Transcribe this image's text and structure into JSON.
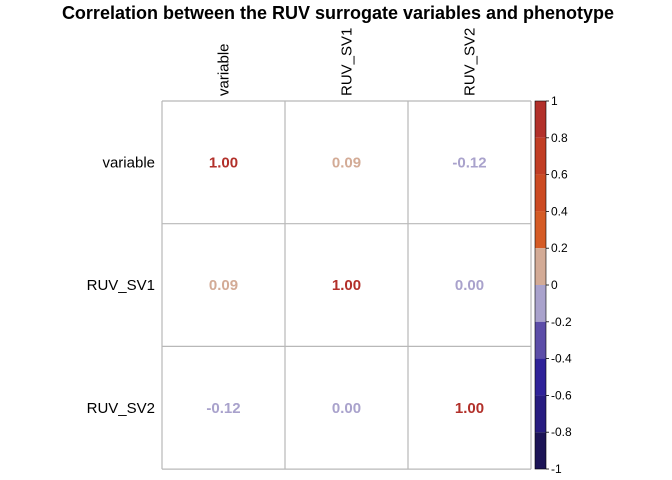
{
  "chart_data": {
    "type": "heatmap",
    "title": "Correlation between the RUV surrogate variables and phenotype",
    "row_labels": [
      "variable",
      "RUV_SV1",
      "RUV_SV2"
    ],
    "col_labels": [
      "variable",
      "RUV_SV1",
      "RUV_SV2"
    ],
    "values": [
      [
        1.0,
        0.09,
        -0.12
      ],
      [
        0.09,
        1.0,
        0.0
      ],
      [
        -0.12,
        0.0,
        1.0
      ]
    ],
    "value_labels": [
      [
        "1.00",
        "0.09",
        "-0.12"
      ],
      [
        "0.09",
        "1.00",
        "0.00"
      ],
      [
        "-0.12",
        "0.00",
        "1.00"
      ]
    ],
    "colorbar": {
      "range": [
        -1,
        1
      ],
      "tick_labels": [
        "1",
        "0.8",
        "0.6",
        "0.4",
        "0.2",
        "0",
        "-0.2",
        "-0.4",
        "-0.6",
        "-0.8",
        "-1"
      ],
      "tick_values": [
        1,
        0.8,
        0.6,
        0.4,
        0.2,
        0,
        -0.2,
        -0.4,
        -0.6,
        -0.8,
        -1
      ],
      "bands": [
        {
          "from": 0.8,
          "to": 1.0,
          "color": "#b2302a"
        },
        {
          "from": 0.6,
          "to": 0.8,
          "color": "#c13d24"
        },
        {
          "from": 0.4,
          "to": 0.6,
          "color": "#cc4a22"
        },
        {
          "from": 0.2,
          "to": 0.4,
          "color": "#d55b25"
        },
        {
          "from": 0.0,
          "to": 0.2,
          "color": "#d3ab96"
        },
        {
          "from": -0.2,
          "to": 0.0,
          "color": "#a9a2cc"
        },
        {
          "from": -0.4,
          "to": -0.2,
          "color": "#5c4da8"
        },
        {
          "from": -0.6,
          "to": -0.4,
          "color": "#2f2299"
        },
        {
          "from": -0.8,
          "to": -0.6,
          "color": "#271c80"
        },
        {
          "from": -1.0,
          "to": -0.8,
          "color": "#1c1456"
        }
      ]
    },
    "grid": true,
    "legend_placement": "right"
  }
}
